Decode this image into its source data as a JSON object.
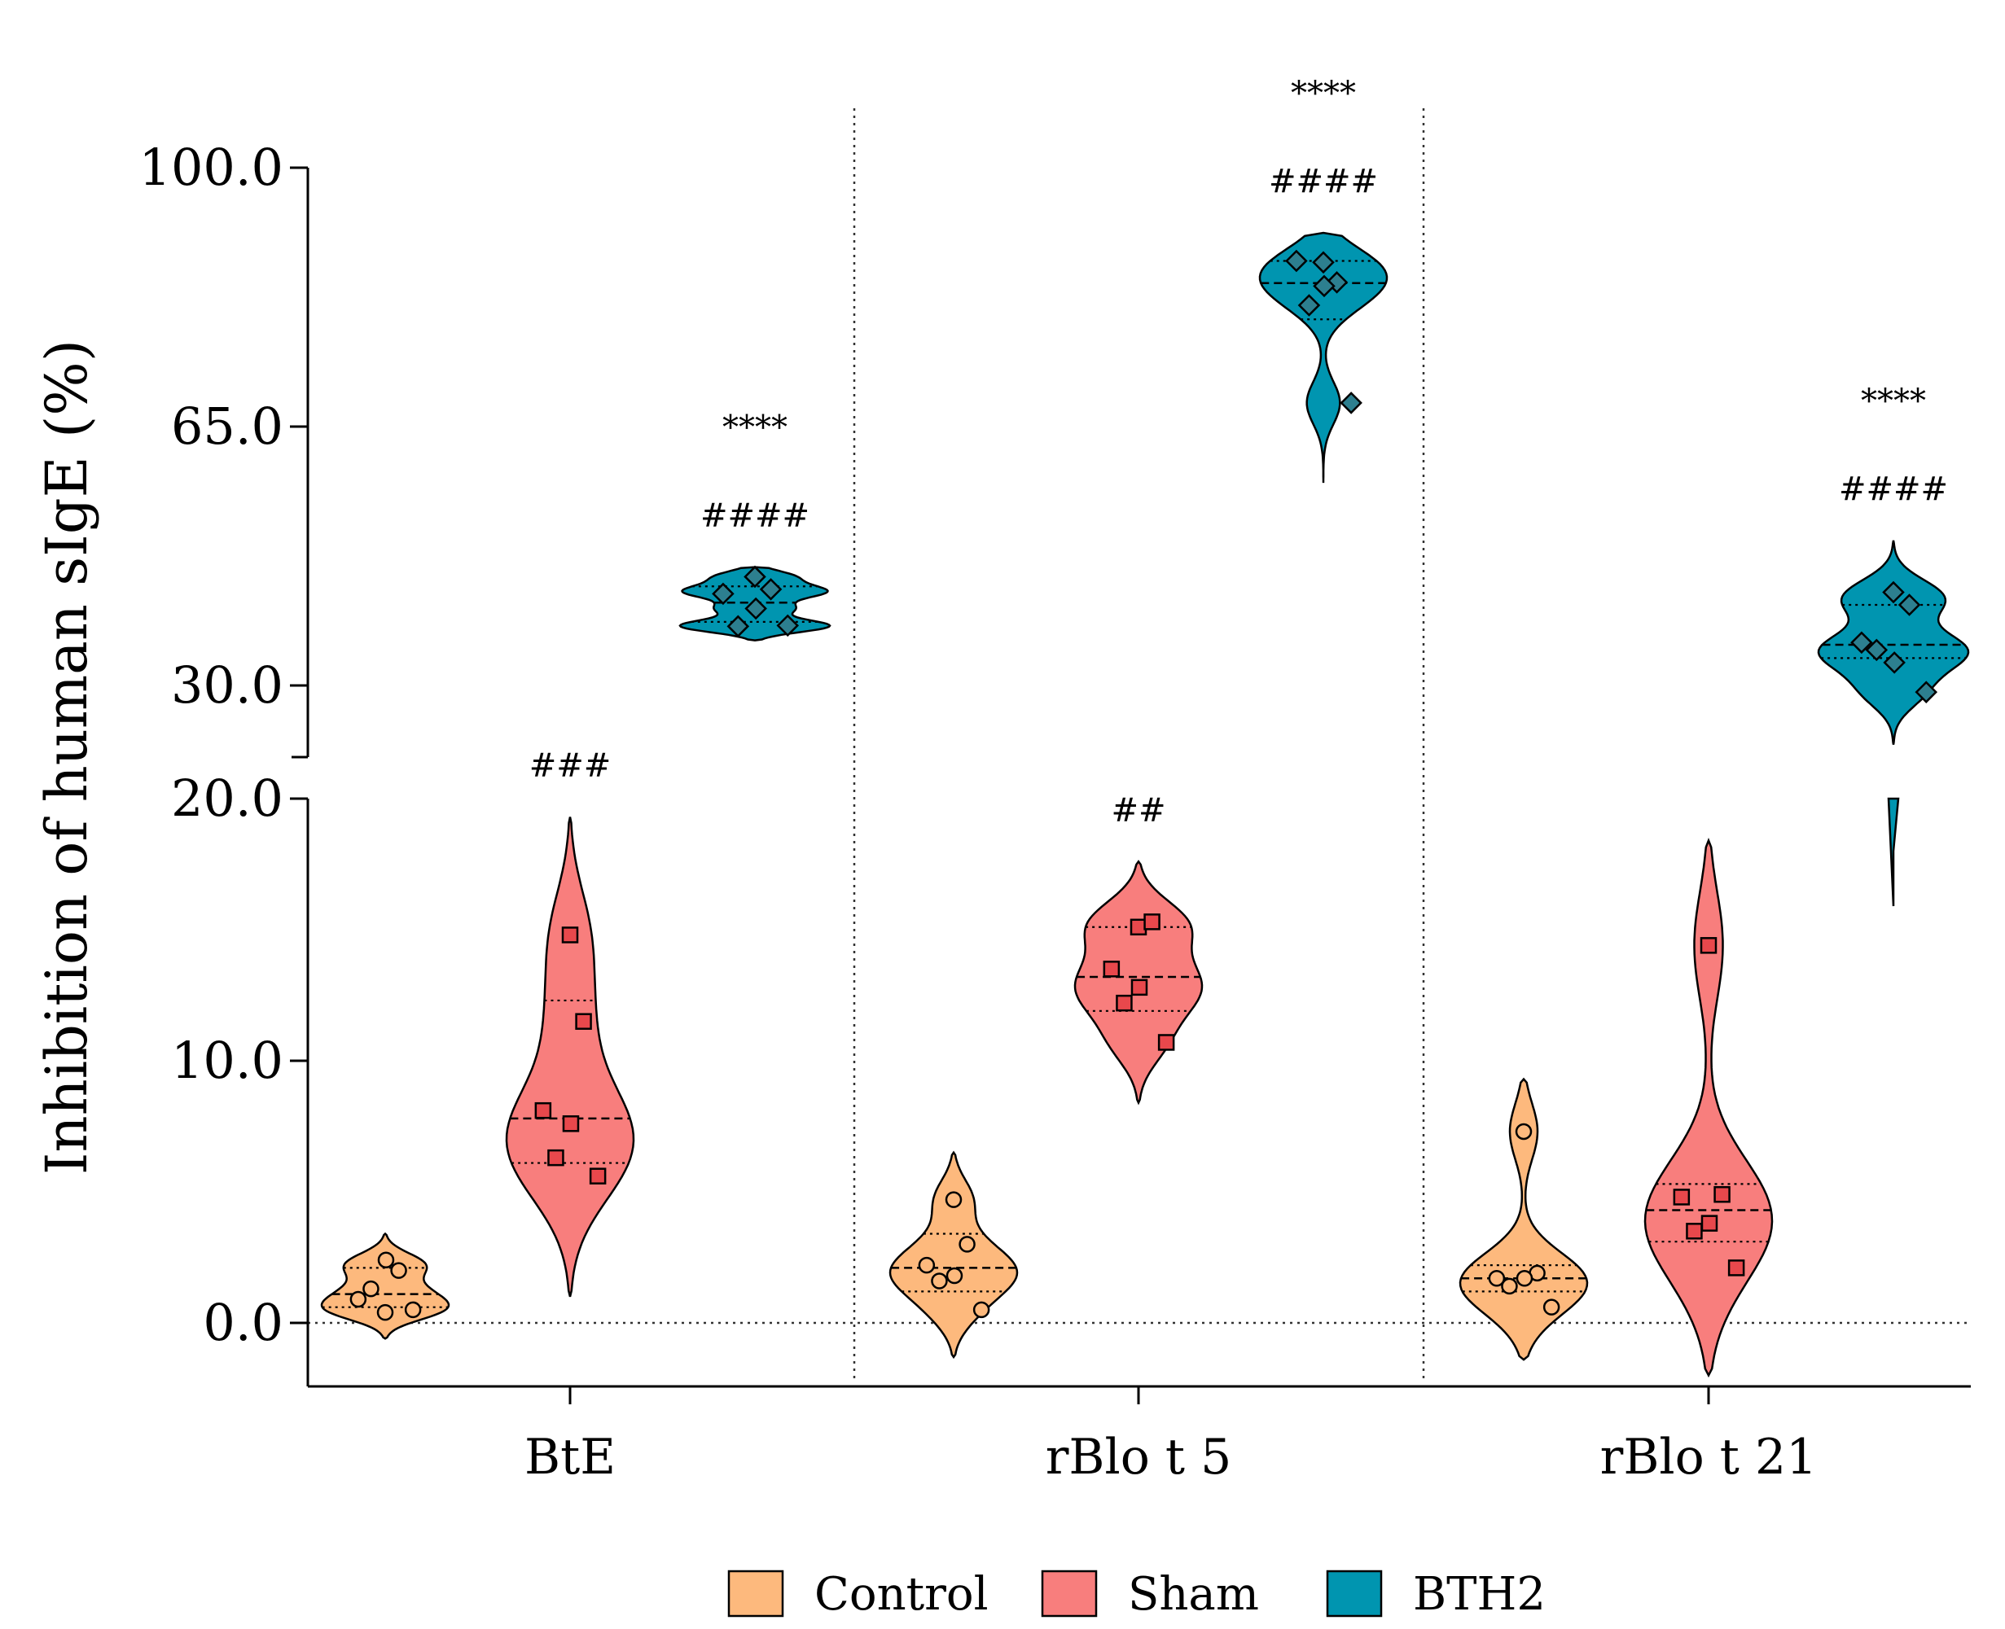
{
  "chart_data": {
    "type": "violin",
    "ylabel": "Inhibition of human sIgE (%)",
    "y_axis": {
      "segments": [
        {
          "range": [
            -2.5,
            20.0
          ],
          "ticks": [
            0.0,
            10.0,
            20.0
          ],
          "tick_labels": [
            "0.0",
            "10.0",
            "20.0"
          ]
        },
        {
          "range": [
            20.6,
            100.0
          ],
          "ticks": [
            30.0,
            65.0,
            100.0
          ],
          "tick_labels": [
            "30.0",
            "65.0",
            "100.0"
          ]
        }
      ],
      "break_between": [
        20.0,
        20.6
      ]
    },
    "reference_line": 0.0,
    "categories": [
      "BtE",
      "rBlo t 5",
      "rBlo t 21"
    ],
    "legend": [
      {
        "name": "Control",
        "color": "#FDB97D"
      },
      {
        "name": "Sham",
        "color": "#F87E7D"
      },
      {
        "name": "BTH2",
        "color": "#0095B0"
      }
    ],
    "groups": [
      {
        "category": "BtE",
        "series": [
          {
            "name": "Control",
            "points": [
              0.4,
              2.0,
              0.9,
              2.4,
              1.3,
              0.5
            ],
            "median": 1.1,
            "quartiles": [
              0.6,
              2.1
            ],
            "range": [
              -0.6,
              3.4
            ],
            "annotations": []
          },
          {
            "name": "Sham",
            "points": [
              14.8,
              11.5,
              8.1,
              7.6,
              6.3,
              5.6
            ],
            "median": 7.8,
            "quartiles": [
              6.1,
              12.3
            ],
            "range": [
              1.0,
              19.3
            ],
            "annotations": [
              "###"
            ]
          },
          {
            "name": "BTH2",
            "points": [
              44.7,
              43.0,
              42.4,
              40.4,
              38.0,
              38.1
            ],
            "median": 41.2,
            "quartiles": [
              38.6,
              43.4
            ],
            "range": [
              36.1,
              46.0
            ],
            "annotations": [
              "####",
              "****"
            ]
          }
        ]
      },
      {
        "category": "rBlo t 5",
        "series": [
          {
            "name": "Control",
            "points": [
              4.7,
              3.0,
              2.2,
              1.8,
              1.6,
              0.5
            ],
            "median": 2.1,
            "quartiles": [
              1.2,
              3.4
            ],
            "range": [
              -1.3,
              6.5
            ],
            "annotations": []
          },
          {
            "name": "Sham",
            "points": [
              15.1,
              15.3,
              13.5,
              12.8,
              12.2,
              10.7
            ],
            "median": 13.2,
            "quartiles": [
              11.9,
              15.1
            ],
            "range": [
              8.4,
              17.6
            ],
            "annotations": [
              "##"
            ]
          },
          {
            "name": "BTH2",
            "points": [
              87.2,
              84.5,
              87.4,
              84.0,
              81.4,
              68.2
            ],
            "median": 84.4,
            "quartiles": [
              79.5,
              87.4
            ],
            "range": [
              57.4,
              91.2
            ],
            "annotations": [
              "####",
              "****"
            ]
          }
        ]
      },
      {
        "category": "rBlo t 21",
        "series": [
          {
            "name": "Control",
            "points": [
              7.3,
              1.9,
              1.7,
              1.7,
              1.4,
              0.6
            ],
            "median": 1.7,
            "quartiles": [
              1.2,
              2.2
            ],
            "range": [
              -1.4,
              9.3
            ],
            "annotations": []
          },
          {
            "name": "Sham",
            "points": [
              14.4,
              4.9,
              4.8,
              3.8,
              3.5,
              2.1
            ],
            "median": 4.3,
            "quartiles": [
              3.1,
              5.3
            ],
            "range": [
              -2.0,
              18.4
            ],
            "annotations": []
          },
          {
            "name": "BTH2",
            "points": [
              42.6,
              40.9,
              35.8,
              33.1,
              34.8,
              29.1
            ],
            "median": 35.5,
            "quartiles": [
              33.7,
              40.9
            ],
            "range": [
              15.9,
              49.6
            ],
            "annotations": [
              "####",
              "****"
            ]
          }
        ]
      }
    ]
  }
}
